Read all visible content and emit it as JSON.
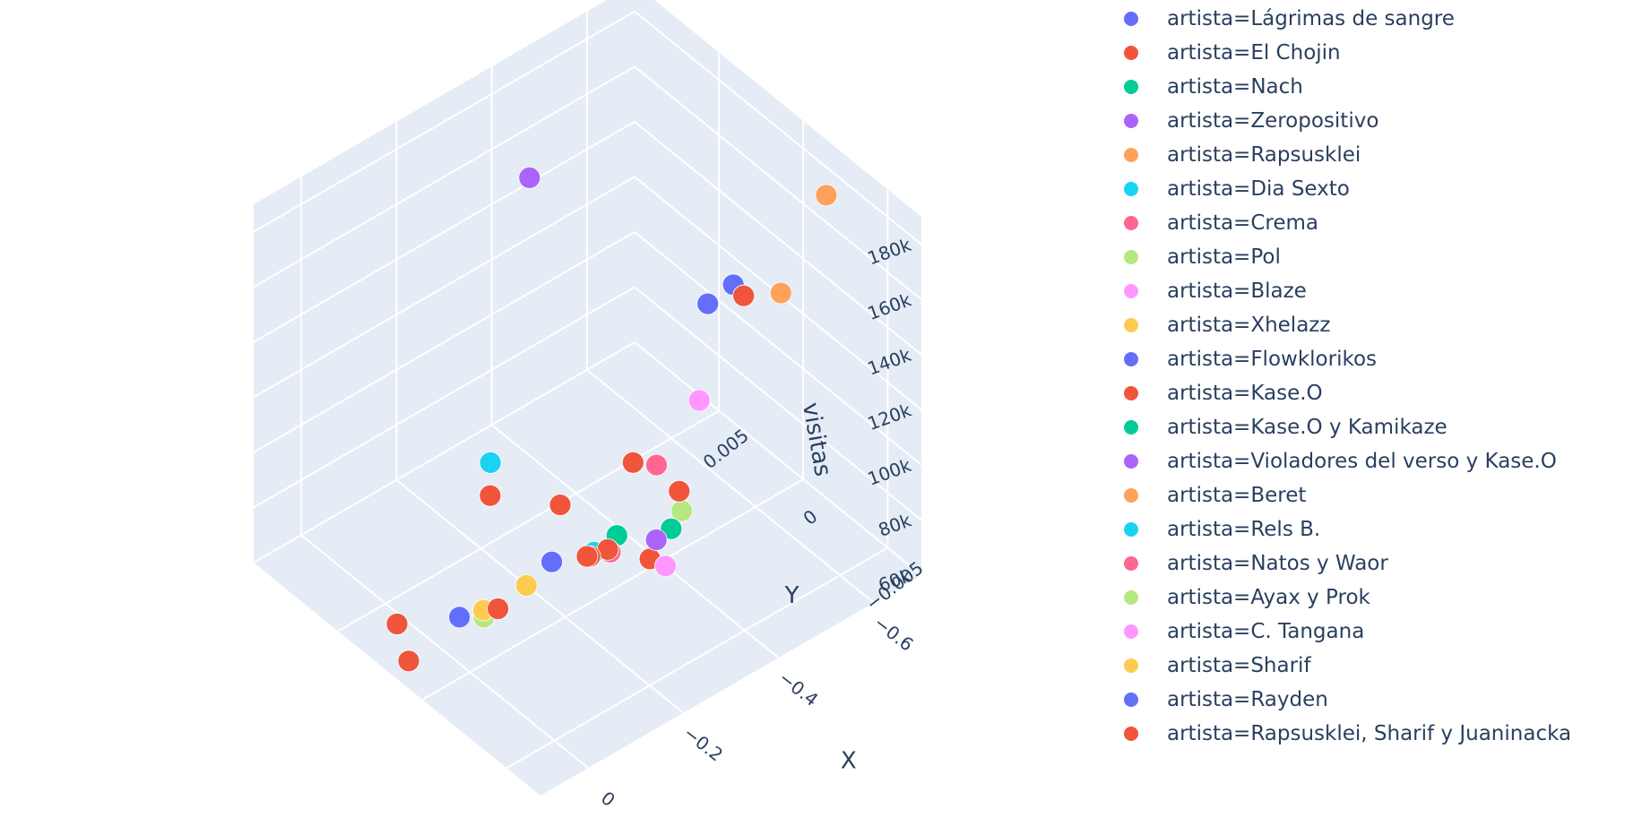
{
  "chart_data": {
    "type": "scatter3d",
    "title": "",
    "xlabel": "X",
    "ylabel": "Y",
    "zlabel": "visitas",
    "xlim": [
      -0.7,
      0.1
    ],
    "ylim": [
      -0.007,
      0.01
    ],
    "zlim": [
      60000,
      190000
    ],
    "grid": true,
    "legend_position": "right",
    "x_ticks": [
      -0.6,
      -0.4,
      -0.2,
      0
    ],
    "x_tick_labels": [
      "−0.6",
      "−0.4",
      "−0.2",
      "0"
    ],
    "y_ticks": [
      -0.005,
      0,
      0.005
    ],
    "y_tick_labels": [
      "−0.005",
      "0",
      "0.005"
    ],
    "z_ticks": [
      60000,
      80000,
      100000,
      120000,
      140000,
      160000,
      180000
    ],
    "z_tick_labels": [
      "60k",
      "80k",
      "100k",
      "120k",
      "140k",
      "160k",
      "180k"
    ],
    "series": [
      {
        "name": "artista=Lágrimas de sangre",
        "color": "#636efa",
        "points": [
          {
            "x": -0.34,
            "y": -0.0045,
            "z": 182000
          },
          {
            "x": -0.5,
            "y": -0.0015,
            "z": 158000
          }
        ]
      },
      {
        "name": "artista=El Chojin",
        "color": "#ef553b",
        "points": [
          {
            "x": -0.3,
            "y": -0.0022,
            "z": 82000
          }
        ]
      },
      {
        "name": "artista=Nach",
        "color": "#00cc96",
        "points": [
          {
            "x": -0.22,
            "y": -0.0025,
            "z": 100000
          }
        ]
      },
      {
        "name": "artista=Zeropositivo",
        "color": "#ab63fa",
        "points": [
          {
            "x": -0.32,
            "y": 0.0055,
            "z": 180000
          }
        ]
      },
      {
        "name": "artista=Rapsusklei",
        "color": "#ffa15a",
        "points": [
          {
            "x": -0.6,
            "y": -0.0015,
            "z": 145000
          }
        ]
      },
      {
        "name": "artista=Dia Sexto",
        "color": "#19d3f3",
        "points": [
          {
            "x": -0.05,
            "y": 0.0002,
            "z": 130000
          }
        ]
      },
      {
        "name": "artista=Crema",
        "color": "#ff6692",
        "points": [
          {
            "x": -0.25,
            "y": -0.004,
            "z": 130000
          }
        ]
      },
      {
        "name": "artista=Pol",
        "color": "#b6e880",
        "points": [
          {
            "x": -0.42,
            "y": -0.0007,
            "z": 80000
          }
        ]
      },
      {
        "name": "artista=Blaze",
        "color": "#ff97ff",
        "points": [
          {
            "x": -0.4,
            "y": -0.0023,
            "z": 130000
          }
        ]
      },
      {
        "name": "artista=Xhelazz",
        "color": "#fecb52",
        "points": [
          {
            "x": -0.2,
            "y": 0.0023,
            "z": 60000
          }
        ]
      },
      {
        "name": "artista=Flowklorikos",
        "color": "#636efa",
        "points": [
          {
            "x": -0.2,
            "y": 0.0008,
            "z": 76000
          }
        ]
      },
      {
        "name": "artista=Kase.O",
        "color": "#ef553b",
        "points": [
          {
            "x": -0.03,
            "y": -0.0045,
            "z": 140000
          }
        ]
      },
      {
        "name": "artista=Kase.O y Kamikaze",
        "color": "#00cc96",
        "points": [
          {
            "x": -0.38,
            "y": -0.0012,
            "z": 80000
          }
        ]
      },
      {
        "name": "artista=Violadores del verso y Kase.O",
        "color": "#ab63fa",
        "points": [
          {
            "x": -0.37,
            "y": -0.0006,
            "z": 74000
          }
        ]
      },
      {
        "name": "artista=Beret",
        "color": "#ffa15a",
        "points": [
          {
            "x": -0.72,
            "y": -0.0008,
            "z": 165000
          }
        ]
      },
      {
        "name": "artista=Rels B.",
        "color": "#19d3f3",
        "points": [
          {
            "x": -0.25,
            "y": -0.0003,
            "z": 80000
          }
        ]
      },
      {
        "name": "artista=Natos y Waor",
        "color": "#ff6692",
        "points": [
          {
            "x": -0.27,
            "y": -0.0007,
            "z": 80000
          }
        ]
      },
      {
        "name": "artista=Ayax y Prok",
        "color": "#b6e880",
        "points": [
          {
            "x": -0.1,
            "y": 0.002,
            "z": 60000
          }
        ]
      },
      {
        "name": "artista=C. Tangana",
        "color": "#ff97ff",
        "points": [
          {
            "x": -0.4,
            "y": -0.0003,
            "z": 60000
          }
        ]
      },
      {
        "name": "artista=Sharif",
        "color": "#fecb52",
        "points": [
          {
            "x": -0.11,
            "y": 0.0023,
            "z": 60000
          }
        ]
      },
      {
        "name": "artista=Rayden",
        "color": "#636efa",
        "points": [
          {
            "x": -0.07,
            "y": 0.0026,
            "z": 60000
          }
        ]
      },
      {
        "name": "artista=Rapsusklei, Sharif y Juaninacka",
        "color": "#ef553b",
        "points": [
          {
            "x": -0.55,
            "y": -0.0007,
            "z": 145000
          },
          {
            "x": -0.28,
            "y": -0.0045,
            "z": 120000
          },
          {
            "x": -0.3,
            "y": -0.0012,
            "z": 112000
          },
          {
            "x": 0.0,
            "y": -0.0012,
            "z": 130000
          },
          {
            "x": 0.15,
            "y": -0.0006,
            "z": 82000
          },
          {
            "x": 0.1,
            "y": 0.0015,
            "z": 80000
          },
          {
            "x": -0.08,
            "y": 0.0006,
            "z": 72000
          },
          {
            "x": -0.3,
            "y": 0.0003,
            "z": 73000
          },
          {
            "x": -0.28,
            "y": 0.0008,
            "z": 70000
          },
          {
            "x": -0.26,
            "y": 0.0004,
            "z": 74000
          }
        ]
      }
    ]
  }
}
